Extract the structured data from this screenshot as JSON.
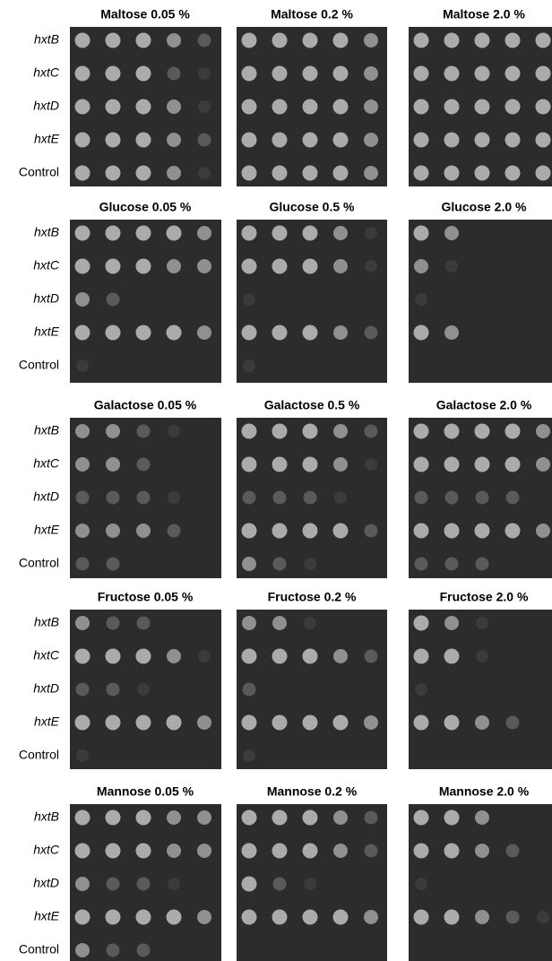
{
  "groups": [
    {
      "titles": [
        "Maltose 0.05 %",
        "Maltose 0.2 %",
        "Maltose 2.0 %"
      ],
      "rows": [
        "hxtB",
        "hxtC",
        "hxtD",
        "hxtE",
        "Control"
      ]
    },
    {
      "titles": [
        "Glucose 0.05 %",
        "Glucose 0.5 %",
        "Glucose 2.0 %"
      ],
      "rows": [
        "hxtB",
        "hxtC",
        "hxtD",
        "hxtE",
        "Control"
      ]
    },
    {
      "titles": [
        "Galactose 0.05 %",
        "Galactose 0.5 %",
        "Galactose 2.0 %"
      ],
      "rows": [
        "hxtB",
        "hxtC",
        "hxtD",
        "hxtE",
        "Control"
      ]
    },
    {
      "titles": [
        "Fructose 0.05 %",
        "Fructose 0.2 %",
        "Fructose 2.0 %"
      ],
      "rows": [
        "hxtB",
        "hxtC",
        "hxtD",
        "hxtE",
        "Control"
      ]
    },
    {
      "titles": [
        "Mannose 0.05 %",
        "Mannose 0.2 %",
        "Mannose 2.0 %"
      ],
      "rows": [
        "hxtB",
        "hxtC",
        "hxtD",
        "hxtE",
        "Control"
      ]
    }
  ]
}
